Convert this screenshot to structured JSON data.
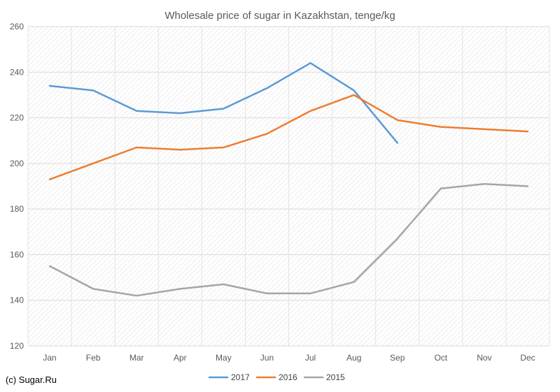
{
  "chart_data": {
    "type": "line",
    "title": "Wholesale price of sugar in Kazakhstan, tenge/kg",
    "categories": [
      "Jan",
      "Feb",
      "Mar",
      "Apr",
      "May",
      "Jun",
      "Jul",
      "Aug",
      "Sep",
      "Oct",
      "Nov",
      "Dec"
    ],
    "ylim": [
      120,
      260
    ],
    "yticks": [
      120,
      140,
      160,
      180,
      200,
      220,
      240,
      260
    ],
    "grid": true,
    "legend_position": "bottom",
    "series": [
      {
        "name": "2017",
        "color": "#5b9bd5",
        "values": [
          234,
          232,
          223,
          222,
          224,
          233,
          244,
          232,
          209,
          null,
          null,
          null
        ]
      },
      {
        "name": "2016",
        "color": "#ed7d31",
        "values": [
          193,
          200,
          207,
          206,
          207,
          213,
          223,
          230,
          219,
          216,
          215,
          214
        ]
      },
      {
        "name": "2015",
        "color": "#a5a5a5",
        "values": [
          155,
          145,
          142,
          145,
          147,
          143,
          143,
          148,
          167,
          189,
          191,
          190
        ]
      }
    ]
  },
  "credit": "(c) Sugar.Ru"
}
